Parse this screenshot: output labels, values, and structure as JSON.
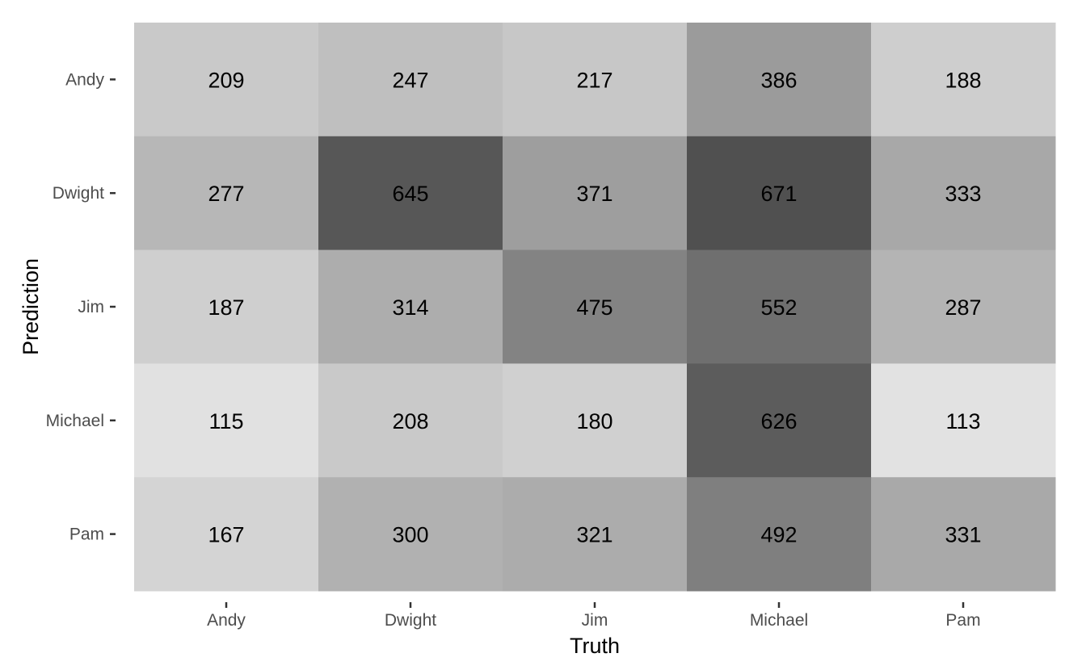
{
  "chart_data": {
    "type": "heatmap",
    "title": "",
    "xlabel": "Truth",
    "ylabel": "Prediction",
    "x_categories": [
      "Andy",
      "Dwight",
      "Jim",
      "Michael",
      "Pam"
    ],
    "y_categories": [
      "Andy",
      "Dwight",
      "Jim",
      "Michael",
      "Pam"
    ],
    "values": [
      [
        209,
        247,
        217,
        386,
        188
      ],
      [
        277,
        645,
        371,
        671,
        333
      ],
      [
        187,
        314,
        475,
        552,
        287
      ],
      [
        115,
        208,
        180,
        626,
        113
      ],
      [
        167,
        300,
        321,
        492,
        331
      ]
    ],
    "color_scale": {
      "low": "#e2e2e2",
      "high": "#505050"
    },
    "legend": "none",
    "grid": false
  }
}
